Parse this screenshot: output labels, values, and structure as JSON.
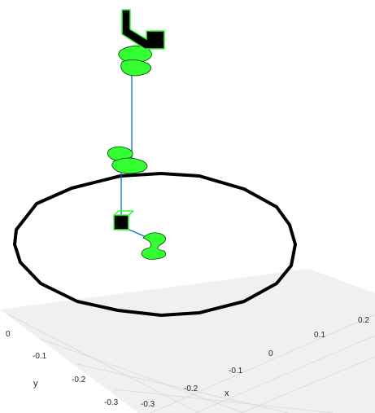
{
  "chart_data": {
    "type": "3d-line",
    "title": "",
    "xlabel": "x",
    "ylabel": "y",
    "zlabel": "",
    "x_ticks": [
      "-0.3",
      "-0.2",
      "-0.1",
      "0",
      "0.1",
      "0.2"
    ],
    "y_ticks": [
      "-0.3",
      "-0.2",
      "-0.1",
      "0"
    ],
    "grid": true,
    "colors": {
      "background": "#ffffff",
      "floor": "#f0f0f0",
      "grid": "#dcdcdc",
      "axis": "#262626",
      "ring": "#000000",
      "link": "#0072bd",
      "geometry": "#33ff33",
      "geometry_edge": "#000000"
    }
  }
}
